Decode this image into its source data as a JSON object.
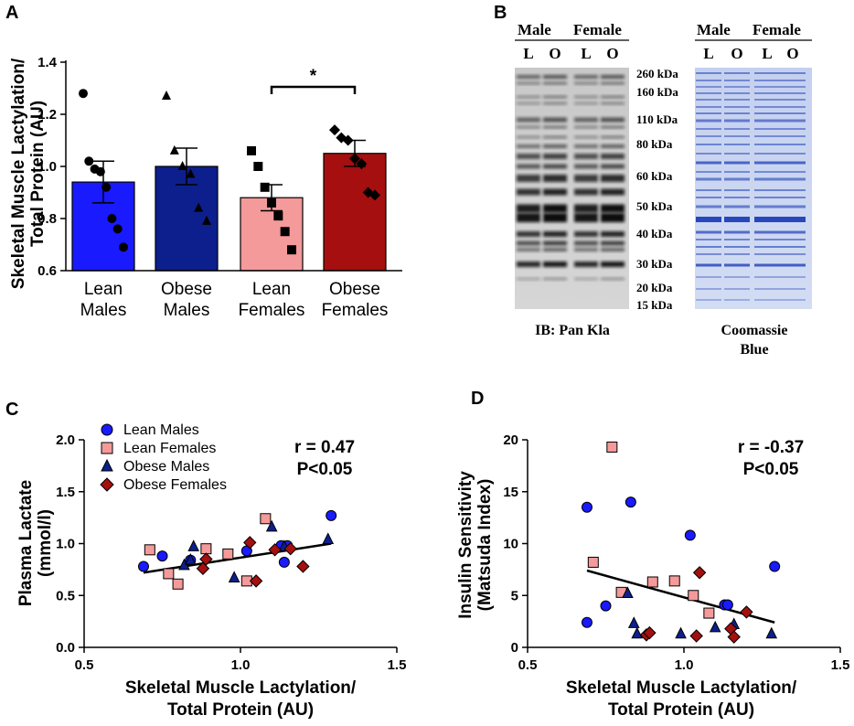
{
  "panel_labels": {
    "a": "A",
    "b": "B",
    "c": "C",
    "d": "D"
  },
  "colors": {
    "lean_males": "#1a1aff",
    "obese_males": "#0d1f8c",
    "lean_females": "#f49a9a",
    "obese_females": "#a50f0f",
    "regression": "#000000"
  },
  "blot": {
    "lane_group_male": "Male",
    "lane_group_female": "Female",
    "lanes": [
      "L",
      "O",
      "L",
      "O"
    ],
    "markers": [
      "260 kDa",
      "160 kDa",
      "110 kDa",
      "80 kDa",
      "60 kDa",
      "50 kDa",
      "40 kDa",
      "30 kDa",
      "20 kDa",
      "15 kDa"
    ],
    "left_caption": "IB: Pan Kla",
    "right_caption_line1": "Coomassie",
    "right_caption_line2": "Blue"
  },
  "chart_data": [
    {
      "id": "A",
      "type": "bar",
      "ylabel_line1": "Skeletal Muscle Lactylation/",
      "ylabel_line2": "Total  Protein (AU)",
      "ylim": [
        0.6,
        1.4
      ],
      "yticks": [
        "0.6",
        "0.8",
        "1.0",
        "1.2",
        "1.4"
      ],
      "categories": [
        {
          "line1": "Lean",
          "line2": "Males"
        },
        {
          "line1": "Obese",
          "line2": "Males"
        },
        {
          "line1": "Lean",
          "line2": "Females"
        },
        {
          "line1": "Obese",
          "line2": "Females"
        }
      ],
      "values": [
        0.94,
        1.0,
        0.88,
        1.05
      ],
      "sem": [
        0.08,
        0.07,
        0.05,
        0.05
      ],
      "markers": [
        "circle",
        "triangle",
        "square",
        "diamond"
      ],
      "points": [
        [
          1.28,
          1.02,
          0.99,
          0.98,
          0.92,
          0.8,
          0.76,
          0.69
        ],
        [
          1.27,
          1.06,
          1.0,
          0.97,
          0.84,
          0.79
        ],
        [
          1.06,
          1.0,
          0.92,
          0.86,
          0.81,
          0.75,
          0.68
        ],
        [
          1.14,
          1.11,
          1.1,
          1.03,
          1.01,
          0.9,
          0.89
        ]
      ],
      "significance": {
        "from": 2,
        "to": 3,
        "label": "*"
      }
    },
    {
      "id": "C",
      "type": "scatter",
      "xlabel_line1": "Skeletal Muscle Lactylation/",
      "xlabel_line2": "Total Protein (AU)",
      "ylabel_line1": "Plasma Lactate",
      "ylabel_line2": "(mmol/l)",
      "xlim": [
        0.5,
        1.5
      ],
      "ylim": [
        0.0,
        2.0
      ],
      "xticks": [
        "0.5",
        "1.0",
        "1.5"
      ],
      "yticks": [
        "0.0",
        "0.5",
        "1.0",
        "1.5",
        "2.0"
      ],
      "stat_line1": "r = 0.47",
      "stat_line2": "P<0.05",
      "regression": {
        "x": [
          0.69,
          1.29
        ],
        "y": [
          0.72,
          1.0
        ]
      },
      "series": [
        {
          "name": "Lean Males",
          "marker": "circle",
          "x": [
            0.69,
            0.75,
            0.84,
            1.02,
            1.13,
            1.14,
            1.15,
            1.29
          ],
          "y": [
            0.78,
            0.88,
            0.84,
            0.93,
            0.98,
            0.82,
            0.98,
            1.27
          ]
        },
        {
          "name": "Lean Females",
          "marker": "square",
          "x": [
            0.71,
            0.77,
            0.8,
            0.89,
            0.96,
            1.02,
            1.08
          ],
          "y": [
            0.94,
            0.71,
            0.61,
            0.95,
            0.9,
            0.64,
            1.24
          ]
        },
        {
          "name": "Obese Males",
          "marker": "triangle",
          "x": [
            0.82,
            0.84,
            0.85,
            0.98,
            1.1,
            1.14,
            1.28
          ],
          "y": [
            0.79,
            0.84,
            0.97,
            0.67,
            1.16,
            0.97,
            1.04
          ]
        },
        {
          "name": "Obese Females",
          "marker": "diamond",
          "x": [
            0.88,
            0.89,
            1.03,
            1.05,
            1.11,
            1.16,
            1.2
          ],
          "y": [
            0.76,
            0.85,
            1.01,
            0.64,
            0.94,
            0.95,
            0.78
          ]
        }
      ]
    },
    {
      "id": "D",
      "type": "scatter",
      "xlabel_line1": "Skeletal Muscle Lactylation/",
      "xlabel_line2": "Total Protein (AU)",
      "ylabel_line1": "Insulin Sensitivity",
      "ylabel_line2": "(Matsuda Index)",
      "xlim": [
        0.5,
        1.5
      ],
      "ylim": [
        0,
        20
      ],
      "xticks": [
        "0.5",
        "1.0",
        "1.5"
      ],
      "yticks": [
        "0",
        "5",
        "10",
        "15",
        "20"
      ],
      "stat_line1": "r = -0.37",
      "stat_line2": "P<0.05",
      "regression": {
        "x": [
          0.69,
          1.29
        ],
        "y": [
          7.4,
          2.4
        ]
      },
      "series": [
        {
          "name": "Lean Males",
          "marker": "circle",
          "x": [
            0.69,
            0.69,
            0.75,
            0.83,
            1.02,
            1.13,
            1.14,
            1.29
          ],
          "y": [
            2.4,
            13.5,
            4.0,
            14.0,
            10.8,
            4.1,
            4.1,
            7.8
          ]
        },
        {
          "name": "Lean Females",
          "marker": "square",
          "x": [
            0.71,
            0.77,
            0.8,
            0.9,
            0.97,
            1.03,
            1.08
          ],
          "y": [
            8.2,
            19.3,
            5.3,
            6.3,
            6.4,
            5.0,
            3.3
          ]
        },
        {
          "name": "Obese Males",
          "marker": "triangle",
          "x": [
            0.82,
            0.84,
            0.85,
            0.99,
            1.1,
            1.16,
            1.28
          ],
          "y": [
            5.2,
            2.3,
            1.3,
            1.3,
            1.9,
            2.2,
            1.3
          ]
        },
        {
          "name": "Obese Females",
          "marker": "diamond",
          "x": [
            0.88,
            0.89,
            1.04,
            1.05,
            1.15,
            1.16,
            1.2
          ],
          "y": [
            1.2,
            1.4,
            1.1,
            7.2,
            1.8,
            1.0,
            3.4
          ]
        }
      ]
    }
  ]
}
